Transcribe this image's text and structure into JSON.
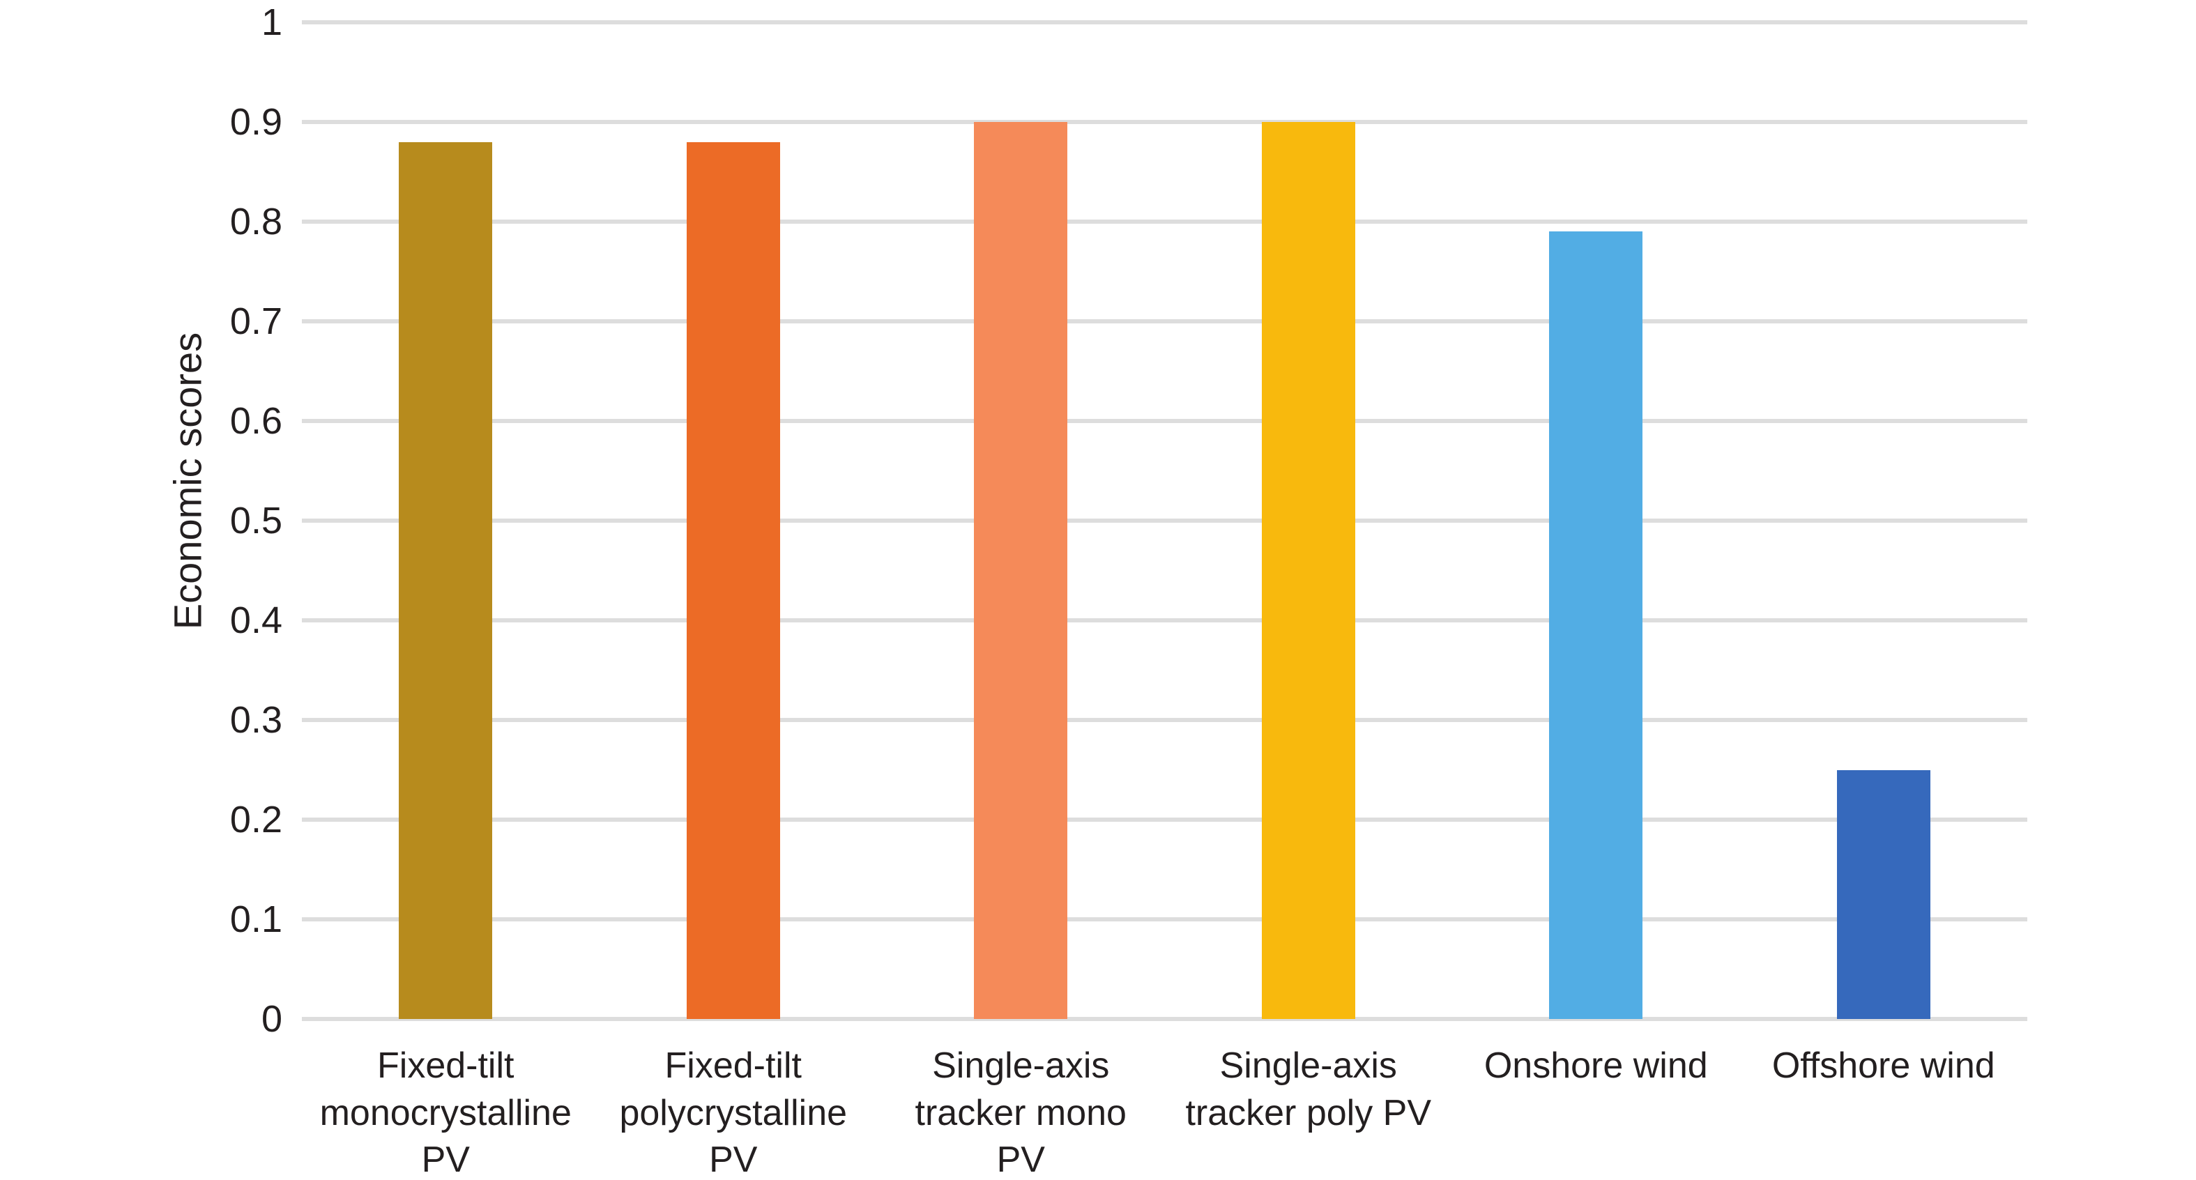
{
  "chart_data": {
    "type": "bar",
    "title": "",
    "xlabel": "",
    "ylabel": "Economic scores",
    "ylim": [
      0,
      1
    ],
    "ytick_labels": [
      "1",
      "0.9",
      "0.8",
      "0.7",
      "0.6",
      "0.5",
      "0.4",
      "0.3",
      "0.2",
      "0.1",
      "0"
    ],
    "ytick_values": [
      1,
      0.9,
      0.8,
      0.7,
      0.6,
      0.5,
      0.4,
      0.3,
      0.2,
      0.1,
      0
    ],
    "grid": "horizontal",
    "legend": "none",
    "categories": [
      "Fixed-tilt monocrystalline PV",
      "Fixed-tilt polycrystalline PV",
      "Single-axis tracker mono PV",
      "Single-axis tracker poly PV",
      "Onshore wind",
      "Offshore wind"
    ],
    "category_lines": [
      [
        "Fixed-tilt",
        "monocrystalline",
        "PV"
      ],
      [
        "Fixed-tilt",
        "polycrystalline",
        "PV"
      ],
      [
        "Single-axis",
        "tracker mono",
        "PV"
      ],
      [
        "Single-axis",
        "tracker poly PV"
      ],
      [
        "Onshore wind"
      ],
      [
        "Offshore wind"
      ]
    ],
    "values": [
      0.88,
      0.88,
      0.9,
      0.9,
      0.79,
      0.25
    ],
    "bar_colors": [
      "#B78B1D",
      "#EC6B26",
      "#F58A59",
      "#F8B90D",
      "#52ADE4",
      "#3669BC"
    ],
    "colors": {
      "grid": "#DDDDDD",
      "text": "#231F20",
      "background": "#FFFFFF"
    }
  }
}
